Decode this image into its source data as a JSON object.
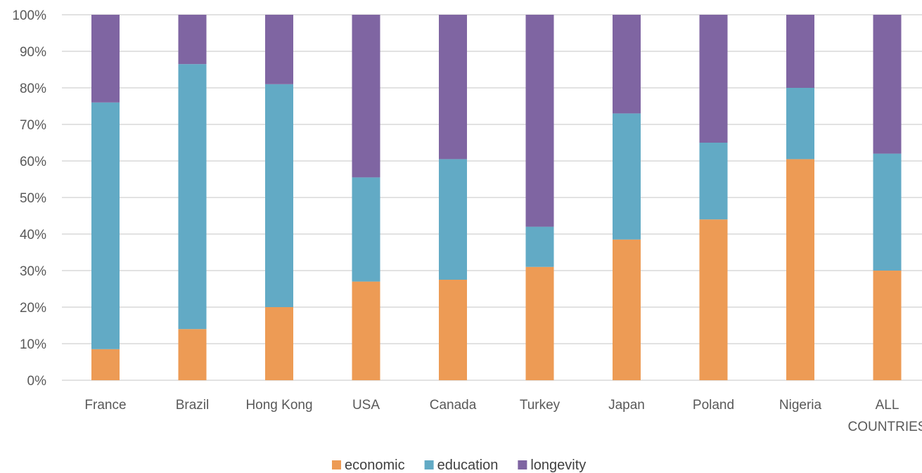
{
  "chart_data": {
    "type": "bar",
    "stacked": true,
    "percent_stacked": true,
    "categories": [
      "France",
      "Brazil",
      "Hong Kong",
      "USA",
      "Canada",
      "Turkey",
      "Japan",
      "Poland",
      "Nigeria",
      "ALL COUNTRIES"
    ],
    "series": [
      {
        "name": "economic",
        "color": "#ED9B55",
        "values": [
          8.5,
          14,
          20,
          27,
          27.5,
          31,
          38.5,
          44,
          60.5,
          30
        ]
      },
      {
        "name": "education",
        "color": "#62AAC5",
        "values": [
          67.5,
          72.5,
          61,
          28.5,
          33,
          11,
          34.5,
          21,
          19.5,
          32
        ]
      },
      {
        "name": "longevity",
        "color": "#7F65A2",
        "values": [
          24,
          13.5,
          19,
          44.5,
          39.5,
          58,
          27,
          35,
          20,
          38
        ]
      }
    ],
    "y_ticks": [
      "0%",
      "10%",
      "20%",
      "30%",
      "40%",
      "50%",
      "60%",
      "70%",
      "80%",
      "90%",
      "100%"
    ],
    "ylim": [
      0,
      100
    ],
    "grid": true,
    "legend_position": "bottom",
    "title": "",
    "xlabel": "",
    "ylabel": ""
  }
}
